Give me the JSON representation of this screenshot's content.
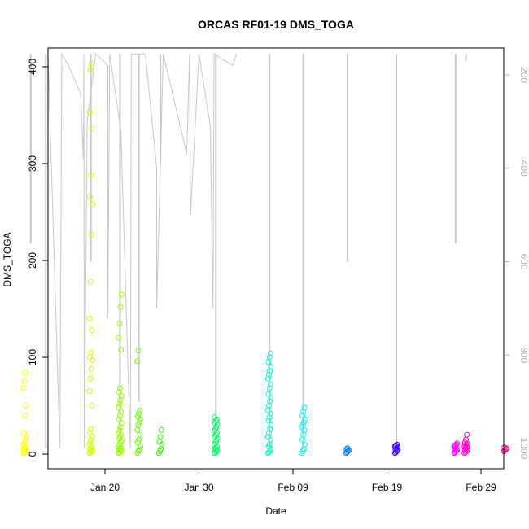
{
  "chart_data": {
    "type": "scatter",
    "title": "ORCAS RF01-19 DMS_TOGA",
    "xlabel": "Date",
    "ylabel": "DMS_TOGA",
    "x_ticks": [
      "Jan 20",
      "Jan 30",
      "Feb 09",
      "Feb 19",
      "Feb 29"
    ],
    "y_ticks": [
      "0",
      "100",
      "200",
      "300",
      "400"
    ],
    "y_ticks_right": [
      "200",
      "400",
      "600",
      "800",
      "1000"
    ],
    "y_lim": [
      0,
      420
    ],
    "y_right_lim": [
      1030,
      155
    ],
    "x_lim_days_from_jan20": [
      -9,
      13.7
    ],
    "grid": false,
    "overlay": {
      "description_type": "line",
      "color": "#c8c8c8",
      "axis": "right",
      "points": [
        [
          -7.9,
          155
        ],
        [
          -7.9,
          560
        ],
        [
          -7.8,
          155
        ],
        [
          -6.3,
          155
        ],
        [
          -4.8,
          1000
        ],
        [
          -4.6,
          155
        ],
        [
          -3.9,
          180
        ],
        [
          -2.6,
          240
        ],
        [
          -2.3,
          380
        ],
        [
          -2.25,
          155
        ],
        [
          -2.2,
          1000
        ],
        [
          -1.9,
          300
        ],
        [
          -1.0,
          155
        ],
        [
          0.3,
          180
        ],
        [
          0.3,
          720
        ],
        [
          0.5,
          155
        ],
        [
          1.7,
          320
        ],
        [
          2.7,
          1000
        ],
        [
          2.8,
          155
        ],
        [
          4.0,
          155
        ],
        [
          4.3,
          155
        ],
        [
          5.5,
          400
        ],
        [
          5.5,
          700
        ],
        [
          6.2,
          155
        ],
        [
          8.7,
          370
        ],
        [
          9.0,
          155
        ],
        [
          9.1,
          500
        ],
        [
          10.0,
          155
        ],
        [
          11.2,
          310
        ],
        [
          11.5,
          700
        ],
        [
          11.6,
          155
        ],
        [
          13.6,
          180
        ],
        [
          14.0,
          155
        ]
      ]
    },
    "series": [
      {
        "color": "#ffff00",
        "x_day": -8.5,
        "values": [
          1,
          2,
          3,
          4,
          5,
          6,
          8,
          10,
          12,
          15,
          18,
          22,
          40,
          50,
          68,
          75,
          84
        ]
      },
      {
        "color": "#ccff00",
        "x_day": -1.5,
        "values": [
          1,
          2,
          3,
          4,
          5,
          6,
          8,
          10,
          12,
          15,
          18,
          22,
          26,
          50,
          65,
          78,
          88,
          97,
          100,
          105,
          128,
          140,
          178,
          227,
          258,
          266,
          288,
          336,
          353,
          397,
          403
        ]
      },
      {
        "color": "#99ff00",
        "x_day": 1.6,
        "values": [
          1,
          2,
          3,
          4,
          5,
          6,
          7,
          8,
          10,
          12,
          14,
          16,
          18,
          20,
          22,
          25,
          28,
          32,
          36,
          40,
          44,
          48,
          52,
          56,
          60,
          64,
          68,
          108,
          120,
          135,
          152,
          165
        ]
      },
      {
        "color": "#66ff00",
        "x_day": 3.6,
        "values": [
          1,
          3,
          5,
          8,
          12,
          15,
          20,
          25,
          30,
          33,
          36,
          39,
          42,
          45,
          96,
          107
        ]
      },
      {
        "color": "#33ff00",
        "x_day": 5.9,
        "values": [
          1,
          3,
          5,
          10,
          13,
          18,
          25
        ]
      },
      {
        "color": "#00ff66",
        "x_day": 11.8,
        "values": [
          1,
          2,
          3,
          4,
          5,
          6,
          8,
          10,
          12,
          14,
          16,
          18,
          20,
          22,
          24,
          26,
          28,
          30,
          32,
          34,
          36,
          38
        ]
      },
      {
        "color": "#00ffcc",
        "x_day": 17.5,
        "values": [
          1,
          2,
          3,
          5,
          8,
          10,
          15,
          18,
          22,
          26,
          30,
          35,
          38,
          42,
          45,
          50,
          55,
          58,
          62,
          68,
          72,
          78,
          82,
          86,
          90,
          95,
          100,
          104
        ]
      },
      {
        "color": "#00ffff",
        "x_day": 21.1,
        "values": [
          1,
          3,
          5,
          10,
          15,
          20,
          25,
          28,
          30,
          33,
          36,
          40,
          44,
          48
        ]
      },
      {
        "color": "#0080ff",
        "x_day": 25.8,
        "values": [
          1,
          2,
          3,
          4,
          5,
          6
        ]
      },
      {
        "color": "#4000ff",
        "x_day": 31.0,
        "values": [
          1,
          2,
          3,
          4,
          5,
          6,
          7,
          8,
          9,
          10
        ]
      },
      {
        "color": "#ff00ff",
        "x_day": 37.3,
        "values": [
          1,
          2,
          3,
          4,
          5,
          6,
          7,
          8,
          9,
          10,
          11
        ]
      },
      {
        "color": "#ff00cc",
        "x_day": 38.4,
        "values": [
          1,
          2,
          3,
          4,
          5,
          6,
          7,
          8,
          9,
          10,
          11,
          12,
          15,
          20
        ]
      },
      {
        "color": "#ff0080",
        "x_day": 42.6,
        "values": [
          3,
          4,
          5,
          6,
          7
        ]
      }
    ]
  }
}
